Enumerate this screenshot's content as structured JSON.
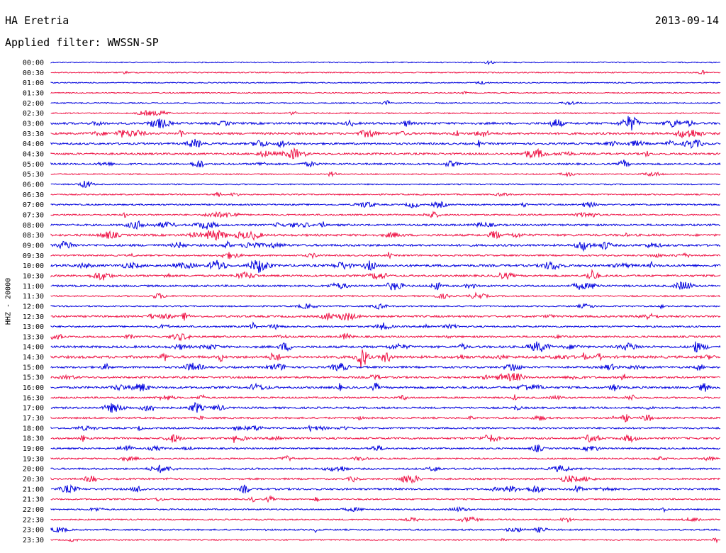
{
  "header": {
    "station": "HA Eretria",
    "date": "2013-09-14",
    "filter": "Applied filter: WWSSN-SP"
  },
  "colors": {
    "even_row": "#0000dd",
    "odd_row": "#ee1144"
  },
  "chart_data": {
    "type": "helicorder",
    "title": "HA Eretria",
    "ylabel": "HHZ - 20000",
    "row_labels": [
      "00:00",
      "00:30",
      "01:00",
      "01:30",
      "02:00",
      "02:30",
      "03:00",
      "03:30",
      "04:00",
      "04:30",
      "05:00",
      "05:30",
      "06:00",
      "06:30",
      "07:00",
      "07:30",
      "08:00",
      "08:30",
      "09:00",
      "09:30",
      "10:00",
      "10:30",
      "11:00",
      "11:30",
      "12:00",
      "12:30",
      "13:00",
      "13:30",
      "14:00",
      "14:30",
      "15:00",
      "15:30",
      "16:00",
      "16:30",
      "17:00",
      "17:30",
      "18:00",
      "18:30",
      "19:00",
      "19:30",
      "20:00",
      "20:30",
      "21:00",
      "21:30",
      "22:00",
      "22:30",
      "23:00",
      "23:30"
    ],
    "row_activity": [
      0.1,
      0.15,
      0.1,
      0.1,
      0.15,
      0.2,
      0.7,
      0.7,
      0.6,
      0.6,
      0.5,
      0.2,
      0.15,
      0.25,
      0.35,
      0.35,
      0.6,
      0.7,
      0.7,
      0.4,
      0.8,
      0.6,
      0.6,
      0.3,
      0.3,
      0.6,
      0.45,
      0.5,
      0.75,
      0.9,
      0.6,
      0.6,
      0.7,
      0.4,
      0.55,
      0.5,
      0.5,
      0.6,
      0.4,
      0.35,
      0.5,
      0.5,
      0.6,
      0.3,
      0.3,
      0.25,
      0.35,
      0.2
    ]
  }
}
